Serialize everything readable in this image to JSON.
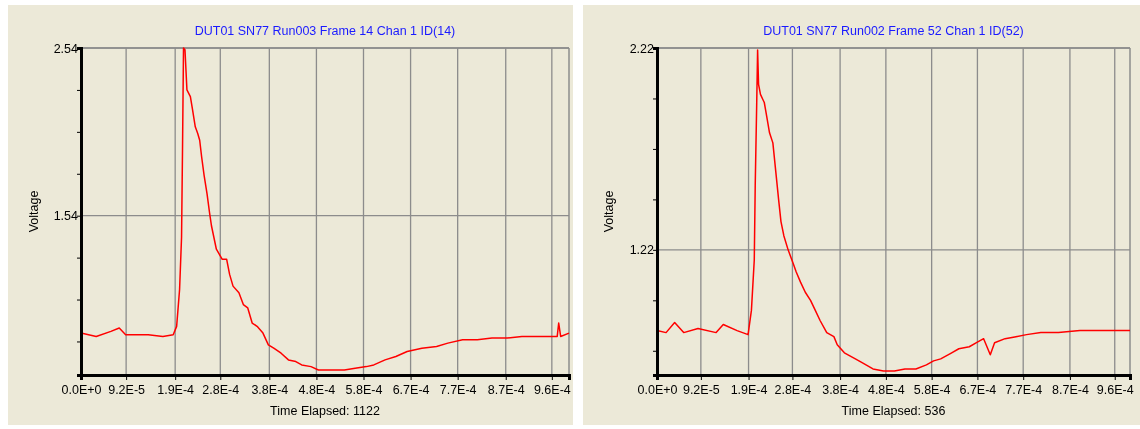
{
  "chart_data": [
    {
      "type": "line",
      "title": "DUT01 SN77 Run003 Frame 14 Chan 1 ID(14)",
      "xlabel": "Time Elapsed: 1122",
      "ylabel": "Voltage",
      "grid": true,
      "marker": "none",
      "line_style": "solid",
      "xlim": [
        0,
        0.000995
      ],
      "ylim": [
        0.59,
        2.54
      ],
      "xticks": [
        {
          "value": 0,
          "label": "0.0E+0"
        },
        {
          "value": 9.2e-05,
          "label": "9.2E-5"
        },
        {
          "value": 0.000192,
          "label": "1.9E-4"
        },
        {
          "value": 0.000284,
          "label": "2.8E-4"
        },
        {
          "value": 0.000384,
          "label": "3.8E-4"
        },
        {
          "value": 0.00048,
          "label": "4.8E-4"
        },
        {
          "value": 0.000576,
          "label": "5.8E-4"
        },
        {
          "value": 0.000672,
          "label": "6.7E-4"
        },
        {
          "value": 0.000768,
          "label": "7.7E-4"
        },
        {
          "value": 0.000866,
          "label": "8.7E-4"
        },
        {
          "value": 0.00096,
          "label": "9.6E-4"
        }
      ],
      "yticks": [
        {
          "value": 0.79,
          "label": null
        },
        {
          "value": 1.04,
          "label": null
        },
        {
          "value": 1.29,
          "label": null
        },
        1.54,
        {
          "value": 1.79,
          "label": null
        },
        {
          "value": 2.04,
          "label": null
        },
        {
          "value": 2.29,
          "label": null
        },
        2.54
      ],
      "x": [
        0,
        3.1e-05,
        6.1e-05,
        7.8e-05,
        9.1e-05,
        0.000137,
        0.000167,
        0.000188,
        0.000195,
        0.000201,
        0.000205,
        0.000207,
        0.000209,
        0.000212,
        0.000216,
        0.000223,
        0.000227,
        0.000233,
        0.000238,
        0.000242,
        0.000246,
        0.000251,
        0.000257,
        0.000262,
        0.000266,
        0.000276,
        0.000288,
        0.000297,
        0.000303,
        0.00031,
        0.000322,
        0.000331,
        0.00034,
        0.000349,
        0.000359,
        0.000371,
        0.000382,
        0.000393,
        0.000408,
        0.000423,
        0.000438,
        0.00045,
        0.000469,
        0.000484,
        0.000506,
        0.000537,
        0.000559,
        0.000582,
        0.000597,
        0.00062,
        0.000642,
        0.000665,
        0.000695,
        0.000725,
        0.000748,
        0.000778,
        0.000808,
        0.000838,
        0.000869,
        0.000899,
        0.000929,
        0.000959,
        0.000971,
        0.000974,
        0.000978,
        0.000995
      ],
      "series": [
        {
          "color": "#ff0000",
          "values": [
            0.84,
            0.82,
            0.85,
            0.87,
            0.83,
            0.83,
            0.82,
            0.83,
            0.88,
            1.1,
            1.41,
            1.94,
            2.54,
            2.53,
            2.29,
            2.25,
            2.18,
            2.07,
            2.03,
            1.99,
            1.89,
            1.78,
            1.67,
            1.56,
            1.48,
            1.34,
            1.28,
            1.28,
            1.19,
            1.12,
            1.08,
            1.01,
            0.99,
            0.9,
            0.88,
            0.84,
            0.77,
            0.75,
            0.72,
            0.68,
            0.67,
            0.65,
            0.64,
            0.62,
            0.62,
            0.62,
            0.63,
            0.64,
            0.65,
            0.68,
            0.7,
            0.73,
            0.75,
            0.76,
            0.78,
            0.8,
            0.8,
            0.81,
            0.81,
            0.82,
            0.82,
            0.82,
            0.82,
            0.9,
            0.82,
            0.84
          ]
        }
      ]
    },
    {
      "type": "line",
      "title": "DUT01 SN77 Run002 Frame 52 Chan 1 ID(52)",
      "xlabel": "Time Elapsed: 536",
      "ylabel": "Voltage",
      "grid": true,
      "marker": "none",
      "line_style": "solid",
      "xlim": [
        0,
        0.000992
      ],
      "ylim": [
        0.6,
        2.22
      ],
      "xticks": [
        {
          "value": 0,
          "label": "0.0E+0"
        },
        {
          "value": 9.2e-05,
          "label": "9.2E-5"
        },
        {
          "value": 0.000192,
          "label": "1.9E-4"
        },
        {
          "value": 0.000284,
          "label": "2.8E-4"
        },
        {
          "value": 0.000384,
          "label": "3.8E-4"
        },
        {
          "value": 0.00048,
          "label": "4.8E-4"
        },
        {
          "value": 0.000576,
          "label": "5.8E-4"
        },
        {
          "value": 0.000672,
          "label": "6.7E-4"
        },
        {
          "value": 0.000768,
          "label": "7.7E-4"
        },
        {
          "value": 0.000866,
          "label": "8.7E-4"
        },
        {
          "value": 0.00096,
          "label": "9.6E-4"
        }
      ],
      "yticks": [
        {
          "value": 0.72,
          "label": null
        },
        {
          "value": 0.97,
          "label": null
        },
        1.22,
        {
          "value": 1.47,
          "label": null
        },
        {
          "value": 1.72,
          "label": null
        },
        {
          "value": 1.97,
          "label": null
        },
        2.22
      ],
      "x": [
        0,
        1.9e-05,
        3.7e-05,
        5.6e-05,
        8.6e-05,
        0.000124,
        0.000139,
        0.000168,
        0.000191,
        0.000198,
        0.000204,
        0.000206,
        0.000209,
        0.000211,
        0.000213,
        0.000217,
        0.000225,
        0.000228,
        0.000236,
        0.000243,
        0.000249,
        0.000255,
        0.00026,
        0.000266,
        0.000275,
        0.000286,
        0.000292,
        0.000301,
        0.000311,
        0.000322,
        0.000332,
        0.000342,
        0.000356,
        0.000371,
        0.000378,
        0.000393,
        0.000416,
        0.000431,
        0.000453,
        0.000475,
        0.000498,
        0.00052,
        0.000543,
        0.000565,
        0.00058,
        0.000595,
        0.000618,
        0.000633,
        0.000655,
        0.00067,
        0.000685,
        0.000699,
        0.000708,
        0.00073,
        0.000753,
        0.000775,
        0.000805,
        0.000842,
        0.000887,
        0.000925,
        0.000962,
        0.000992
      ],
      "series": [
        {
          "color": "#ff0000",
          "values": [
            0.82,
            0.81,
            0.86,
            0.81,
            0.83,
            0.81,
            0.85,
            0.82,
            0.8,
            0.92,
            1.17,
            1.54,
            1.93,
            2.21,
            2.04,
            1.99,
            1.95,
            1.91,
            1.8,
            1.75,
            1.61,
            1.47,
            1.36,
            1.29,
            1.22,
            1.15,
            1.11,
            1.06,
            1.01,
            0.97,
            0.92,
            0.87,
            0.81,
            0.79,
            0.75,
            0.71,
            0.68,
            0.66,
            0.63,
            0.62,
            0.62,
            0.63,
            0.63,
            0.65,
            0.67,
            0.68,
            0.71,
            0.73,
            0.74,
            0.76,
            0.78,
            0.7,
            0.76,
            0.78,
            0.79,
            0.8,
            0.81,
            0.81,
            0.82,
            0.82,
            0.82,
            0.82
          ]
        }
      ]
    }
  ]
}
